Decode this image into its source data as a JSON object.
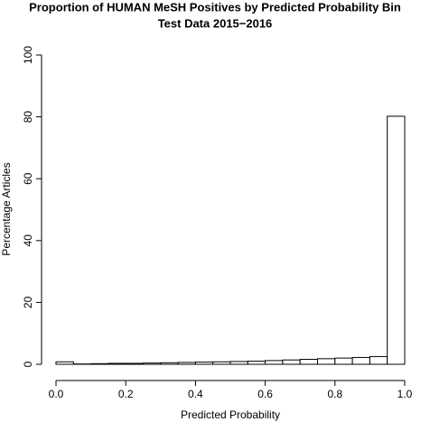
{
  "chart_data": {
    "type": "histogram",
    "title": "Proportion of HUMAN MeSH Positives by Predicted Probability Bin",
    "subtitle": "Test Data 2015−2016",
    "x_label": "Predicted Probability",
    "y_label": "Percentage Articles",
    "bins": [
      0,
      0.05,
      0.1,
      0.15,
      0.2,
      0.25,
      0.3,
      0.35,
      0.4,
      0.45,
      0.5,
      0.55,
      0.6,
      0.65,
      0.7,
      0.75,
      0.8,
      0.85,
      0.9,
      0.95,
      1
    ],
    "values": [
      0.8,
      0.1,
      0.2,
      0.3,
      0.3,
      0.4,
      0.5,
      0.6,
      0.7,
      0.8,
      0.9,
      1.0,
      1.2,
      1.4,
      1.6,
      1.8,
      2.0,
      2.2,
      2.5,
      80.2
    ],
    "color": "#ffffff",
    "xlim": [
      0,
      1
    ],
    "xticks": [
      {
        "value": 0,
        "label": "0.0"
      },
      0.2,
      0.4,
      0.6,
      0.8,
      {
        "value": 1,
        "label": "1.0"
      }
    ],
    "ylim": [
      0,
      100
    ],
    "yticks": [
      0,
      20,
      40,
      60,
      80,
      100
    ]
  }
}
